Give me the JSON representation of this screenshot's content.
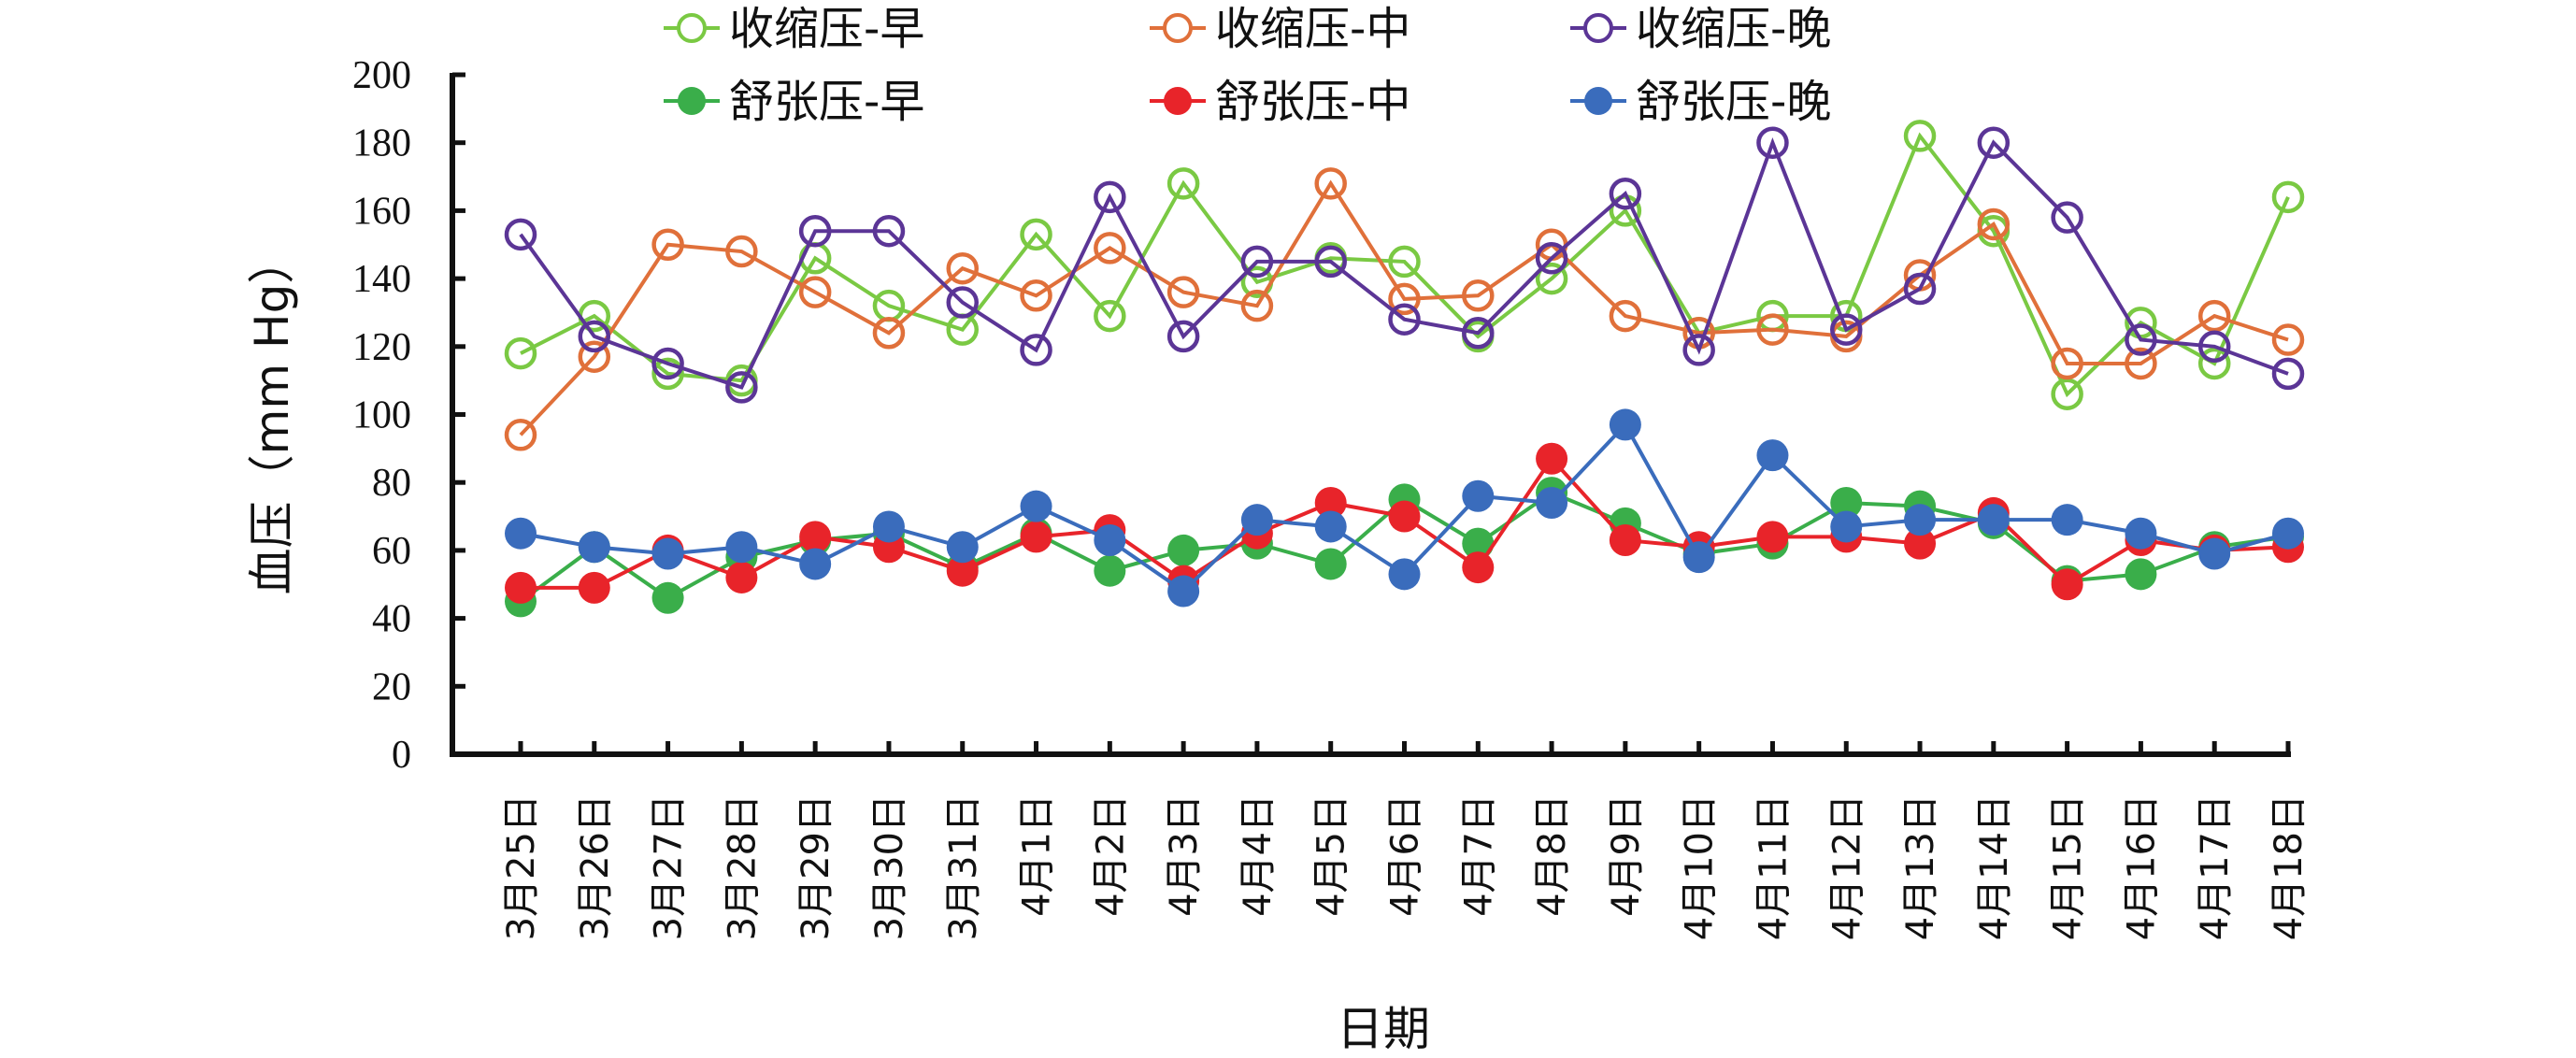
{
  "chart_data": {
    "type": "line",
    "title": "",
    "xlabel": "日期",
    "ylabel": "血压（mm Hg）",
    "ylim": [
      0,
      200
    ],
    "yticks": [
      0,
      20,
      40,
      60,
      80,
      100,
      120,
      140,
      160,
      180,
      200
    ],
    "grid": false,
    "legend_position": "top",
    "categories": [
      "3月25日",
      "3月26日",
      "3月27日",
      "3月28日",
      "3月29日",
      "3月30日",
      "3月31日",
      "4月1日",
      "4月2日",
      "4月3日",
      "4月4日",
      "4月5日",
      "4月6日",
      "4月7日",
      "4月8日",
      "4月9日",
      "4月10日",
      "4月11日",
      "4月12日",
      "4月13日",
      "4月14日",
      "4月15日",
      "4月16日",
      "4月17日",
      "4月18日"
    ],
    "series": [
      {
        "name": "收缩压-早",
        "color": "#7ac943",
        "marker": "open-circle",
        "values": [
          118,
          129,
          112,
          110,
          146,
          132,
          125,
          153,
          129,
          168,
          139,
          146,
          145,
          123,
          140,
          160,
          124,
          129,
          129,
          182,
          154,
          106,
          127,
          115,
          164
        ]
      },
      {
        "name": "收缩压-中",
        "color": "#e0703a",
        "marker": "open-circle",
        "values": [
          94,
          117,
          150,
          148,
          136,
          124,
          143,
          135,
          149,
          136,
          132,
          168,
          134,
          135,
          150,
          129,
          124,
          125,
          123,
          141,
          156,
          115,
          115,
          129,
          122
        ]
      },
      {
        "name": "收缩压-晚",
        "color": "#5b3596",
        "marker": "open-circle",
        "values": [
          153,
          123,
          115,
          108,
          154,
          154,
          133,
          119,
          164,
          123,
          145,
          145,
          128,
          124,
          146,
          165,
          119,
          180,
          125,
          137,
          180,
          158,
          122,
          120,
          112
        ]
      },
      {
        "name": "舒张压-早",
        "color": "#3aae4a",
        "marker": "filled-circle",
        "values": [
          45,
          61,
          46,
          58,
          63,
          65,
          55,
          65,
          54,
          60,
          62,
          56,
          75,
          62,
          77,
          68,
          59,
          62,
          74,
          73,
          68,
          51,
          53,
          61,
          64
        ]
      },
      {
        "name": "舒张压-中",
        "color": "#e8242a",
        "marker": "filled-circle",
        "values": [
          49,
          49,
          60,
          52,
          64,
          61,
          54,
          64,
          66,
          51,
          65,
          74,
          70,
          55,
          87,
          63,
          61,
          64,
          64,
          62,
          71,
          50,
          63,
          60,
          61
        ]
      },
      {
        "name": "舒张压-晚",
        "color": "#3a6cbc",
        "marker": "filled-circle",
        "values": [
          65,
          61,
          59,
          61,
          56,
          67,
          61,
          73,
          63,
          48,
          69,
          67,
          53,
          76,
          74,
          97,
          58,
          88,
          67,
          69,
          69,
          69,
          65,
          59,
          65
        ]
      }
    ]
  }
}
